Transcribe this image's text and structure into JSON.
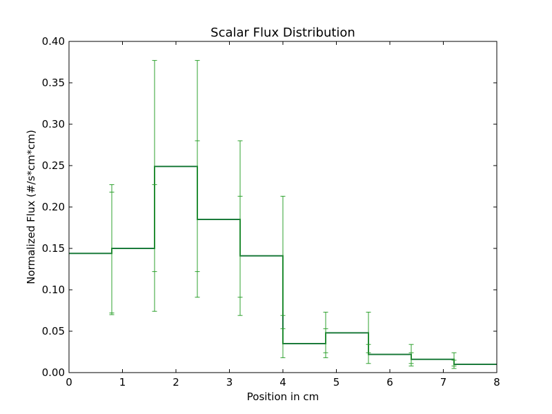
{
  "chart_data": {
    "type": "line",
    "title": "Scalar Flux Distribution",
    "xlabel": "Position in cm",
    "ylabel": "Normalized Flux (#/s*cm*cm)",
    "xlim": [
      0,
      8
    ],
    "ylim": [
      0,
      0.4
    ],
    "x_ticks": [
      0,
      1,
      2,
      3,
      4,
      5,
      6,
      7,
      8
    ],
    "x_tick_labels": [
      "0",
      "1",
      "2",
      "3",
      "4",
      "5",
      "6",
      "7",
      "8"
    ],
    "y_ticks": [
      0,
      0.05,
      0.1,
      0.15,
      0.2,
      0.25,
      0.3,
      0.35,
      0.4
    ],
    "y_tick_labels": [
      "0.00",
      "0.05",
      "0.10",
      "0.15",
      "0.20",
      "0.25",
      "0.30",
      "0.35",
      "0.40"
    ],
    "grid": false,
    "series": [
      {
        "style": "step",
        "color": "#1a7a3a",
        "errorbar_color": "#2ca02c",
        "bin_edges": [
          0,
          0.8,
          1.6,
          2.4,
          3.2,
          4.0,
          4.8,
          5.6,
          6.4,
          7.2,
          8.0
        ],
        "values": [
          0.144,
          0.15,
          0.249,
          0.185,
          0.141,
          0.035,
          0.048,
          0.022,
          0.016,
          0.01
        ]
      }
    ],
    "error_bars": [
      {
        "x": 0.8,
        "lower": 0.072,
        "upper": 0.218
      },
      {
        "x": 0.8,
        "lower": 0.07,
        "upper": 0.227
      },
      {
        "x": 1.6,
        "lower": 0.122,
        "upper": 0.377
      },
      {
        "x": 1.6,
        "lower": 0.074,
        "upper": 0.227
      },
      {
        "x": 2.4,
        "lower": 0.122,
        "upper": 0.377
      },
      {
        "x": 2.4,
        "lower": 0.091,
        "upper": 0.28
      },
      {
        "x": 3.2,
        "lower": 0.091,
        "upper": 0.28
      },
      {
        "x": 3.2,
        "lower": 0.069,
        "upper": 0.213
      },
      {
        "x": 4.0,
        "lower": 0.069,
        "upper": 0.213
      },
      {
        "x": 4.0,
        "lower": 0.018,
        "upper": 0.053
      },
      {
        "x": 4.8,
        "lower": 0.018,
        "upper": 0.053
      },
      {
        "x": 4.8,
        "lower": 0.024,
        "upper": 0.073
      },
      {
        "x": 5.6,
        "lower": 0.024,
        "upper": 0.073
      },
      {
        "x": 5.6,
        "lower": 0.011,
        "upper": 0.034
      },
      {
        "x": 6.4,
        "lower": 0.011,
        "upper": 0.034
      },
      {
        "x": 6.4,
        "lower": 0.008,
        "upper": 0.024
      },
      {
        "x": 7.2,
        "lower": 0.008,
        "upper": 0.024
      },
      {
        "x": 7.2,
        "lower": 0.005,
        "upper": 0.015
      }
    ]
  }
}
